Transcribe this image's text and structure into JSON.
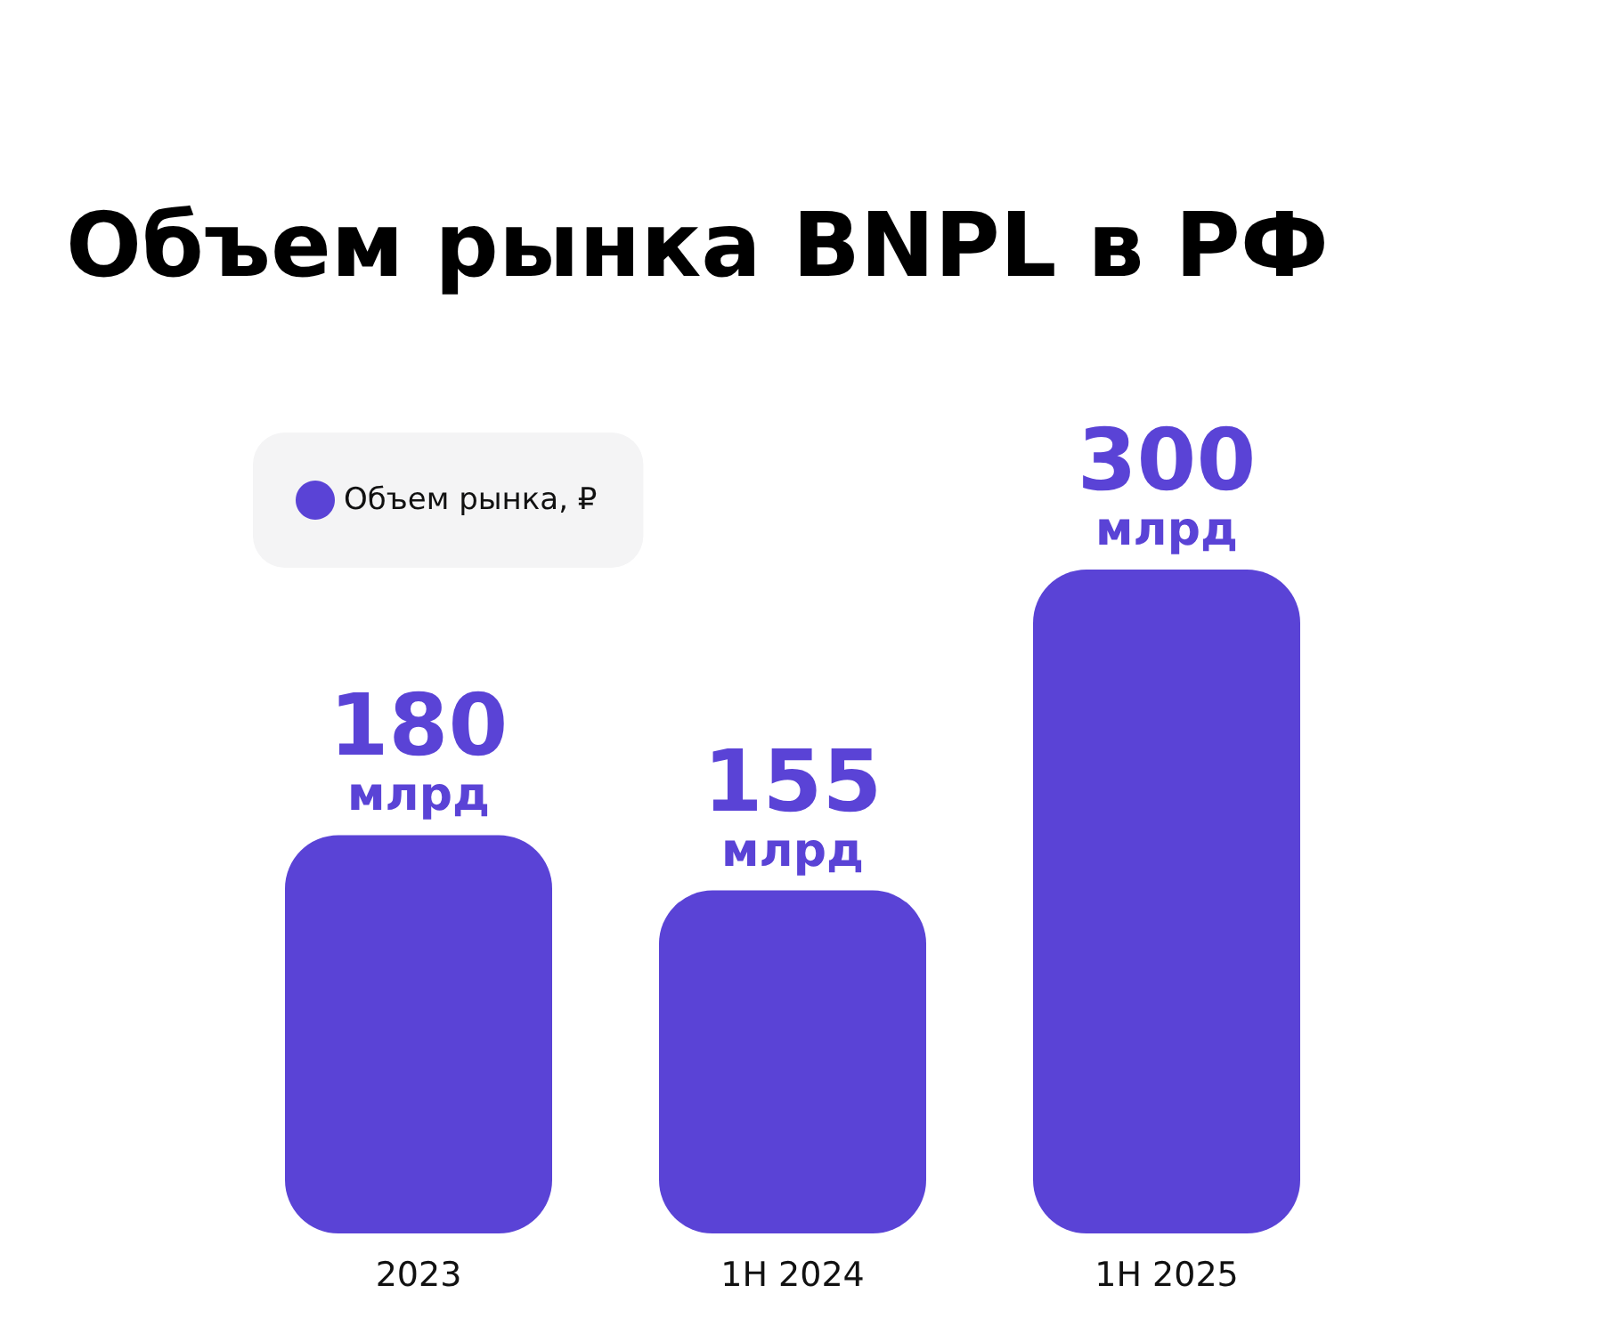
{
  "chart_data": {
    "type": "bar",
    "title": "Объем рынка BNPL в РФ",
    "categories": [
      "2023",
      "1H 2024",
      "1H 2025"
    ],
    "series": [
      {
        "name": "Объем рынка, ₽",
        "color": "#5a43d6",
        "values": [
          180,
          155,
          300
        ],
        "value_labels": [
          "180 млрд",
          "155 млрд",
          "300 млрд"
        ]
      }
    ],
    "legend": "top left",
    "grid": false
  }
}
